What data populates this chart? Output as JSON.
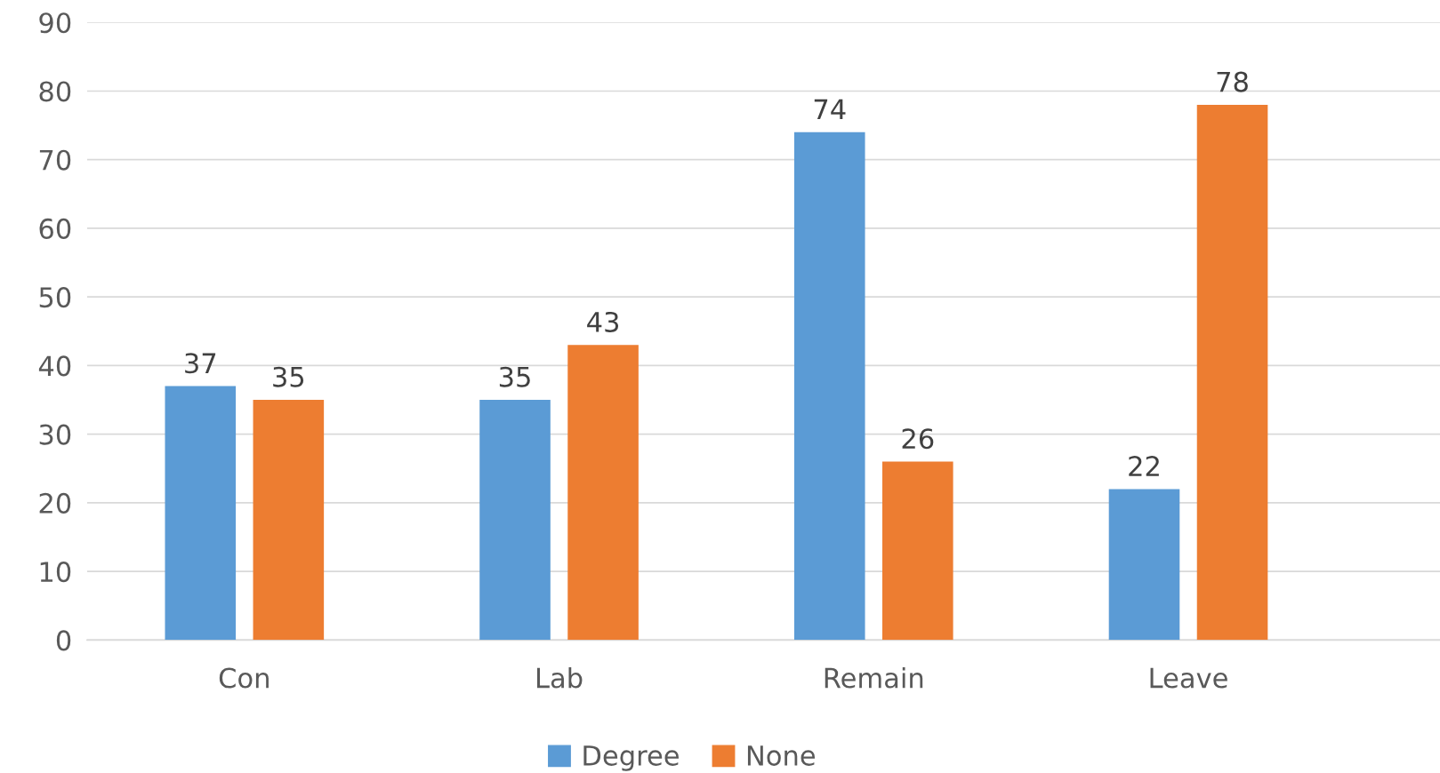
{
  "chart_data": {
    "type": "bar",
    "categories": [
      "Con",
      "Lab",
      "Remain",
      "Leave"
    ],
    "series": [
      {
        "name": "Degree",
        "color": "#5b9bd5",
        "values": [
          37,
          35,
          74,
          22
        ]
      },
      {
        "name": "None",
        "color": "#ed7d31",
        "values": [
          35,
          43,
          26,
          78
        ]
      }
    ],
    "ylim": [
      0,
      90
    ],
    "yticks": [
      0,
      10,
      20,
      30,
      40,
      50,
      60,
      70,
      80,
      90
    ],
    "grid": "y",
    "legend": "bottom",
    "data_labels": true
  }
}
